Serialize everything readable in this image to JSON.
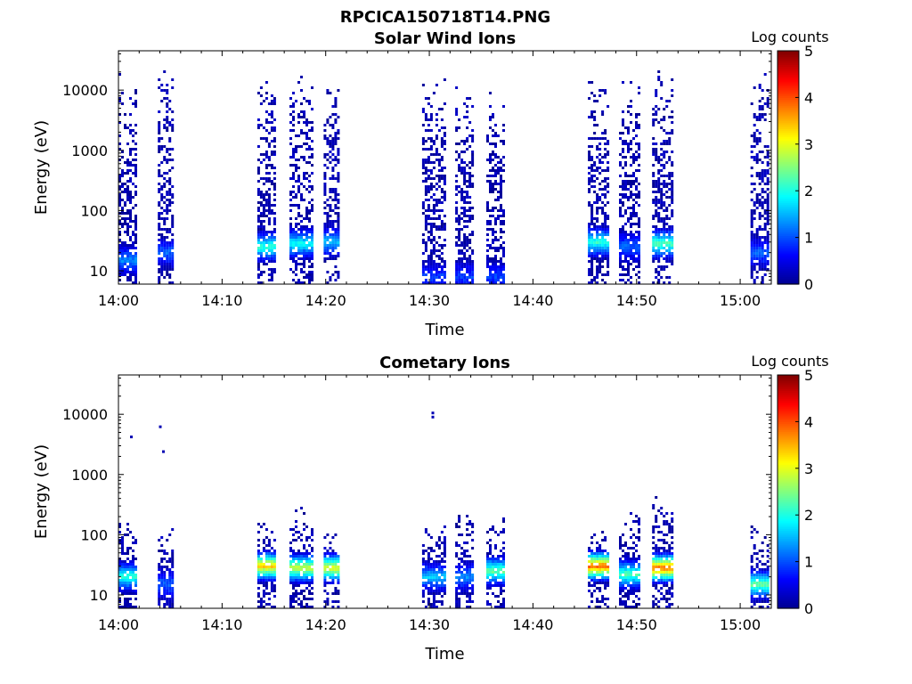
{
  "figure_title": "RPCICA150718T14.PNG",
  "colormap": [
    "#00008f",
    "#0000ff",
    "#0080ff",
    "#00ffff",
    "#80ff80",
    "#ffff00",
    "#ff8000",
    "#ff0000",
    "#800000"
  ],
  "chart_data": [
    {
      "type": "heatmap",
      "title": "Solar Wind Ions",
      "xlabel": "Time",
      "ylabel": "Energy (eV)",
      "xlim": [
        "14:00",
        "15:03"
      ],
      "x_ticks": [
        "14:00",
        "14:10",
        "14:20",
        "14:30",
        "14:40",
        "14:50",
        "15:00"
      ],
      "y_scale": "log",
      "ylim": [
        6,
        45000
      ],
      "y_ticks": [
        "10",
        "100",
        "1000",
        "10000"
      ],
      "colorbar": {
        "label": "Log counts",
        "range": [
          0,
          5
        ],
        "ticks": [
          "0",
          "1",
          "2",
          "3",
          "4",
          "5"
        ]
      },
      "bursts": [
        {
          "start": "14:00.0",
          "end": "14:01.8",
          "emin": 6,
          "emax": 22000,
          "peak_energy": 15,
          "peak_log_counts": 1.2
        },
        {
          "start": "14:03.8",
          "end": "14:05.3",
          "emin": 6,
          "emax": 25000,
          "peak_energy": 20,
          "peak_log_counts": 1.0
        },
        {
          "start": "14:13.4",
          "end": "14:15.0",
          "emin": 6,
          "emax": 20000,
          "peak_energy": 25,
          "peak_log_counts": 2.0
        },
        {
          "start": "14:16.5",
          "end": "14:18.7",
          "emin": 6,
          "emax": 18000,
          "peak_energy": 28,
          "peak_log_counts": 1.8
        },
        {
          "start": "14:19.8",
          "end": "14:21.3",
          "emin": 6,
          "emax": 15000,
          "peak_energy": 30,
          "peak_log_counts": 1.5
        },
        {
          "start": "14:29.3",
          "end": "14:31.5",
          "emin": 6,
          "emax": 18000,
          "peak_energy": 8,
          "peak_log_counts": 0.8
        },
        {
          "start": "14:32.5",
          "end": "14:34.2",
          "emin": 6,
          "emax": 15000,
          "peak_energy": 8,
          "peak_log_counts": 0.8
        },
        {
          "start": "14:35.5",
          "end": "14:37.2",
          "emin": 6,
          "emax": 10000,
          "peak_energy": 8,
          "peak_log_counts": 0.8
        },
        {
          "start": "14:45.3",
          "end": "14:47.2",
          "emin": 6,
          "emax": 18000,
          "peak_energy": 30,
          "peak_log_counts": 2.0
        },
        {
          "start": "14:48.3",
          "end": "14:50.2",
          "emin": 6,
          "emax": 20000,
          "peak_energy": 25,
          "peak_log_counts": 1.0
        },
        {
          "start": "14:51.5",
          "end": "14:53.4",
          "emin": 6,
          "emax": 25000,
          "peak_energy": 28,
          "peak_log_counts": 2.2
        },
        {
          "start": "15:01.0",
          "end": "15:02.8",
          "emin": 6,
          "emax": 22000,
          "peak_energy": 20,
          "peak_log_counts": 1.0
        }
      ]
    },
    {
      "type": "heatmap",
      "title": "Cometary Ions",
      "xlabel": "Time",
      "ylabel": "Energy (eV)",
      "xlim": [
        "14:00",
        "15:03"
      ],
      "x_ticks": [
        "14:00",
        "14:10",
        "14:20",
        "14:30",
        "14:40",
        "14:50",
        "15:00"
      ],
      "y_scale": "log",
      "ylim": [
        6,
        45000
      ],
      "y_ticks": [
        "10",
        "100",
        "1000",
        "10000"
      ],
      "colorbar": {
        "label": "Log counts",
        "range": [
          0,
          5
        ],
        "ticks": [
          "0",
          "1",
          "2",
          "3",
          "4",
          "5"
        ]
      },
      "bursts": [
        {
          "start": "14:00.0",
          "end": "14:01.8",
          "emin": 6,
          "emax": 180,
          "peak_energy": 20,
          "peak_log_counts": 2.0
        },
        {
          "start": "14:03.8",
          "end": "14:05.3",
          "emin": 6,
          "emax": 150,
          "peak_energy": 15,
          "peak_log_counts": 1.0
        },
        {
          "start": "14:13.4",
          "end": "14:15.0",
          "emin": 6,
          "emax": 180,
          "peak_energy": 30,
          "peak_log_counts": 3.3
        },
        {
          "start": "14:16.5",
          "end": "14:18.7",
          "emin": 6,
          "emax": 300,
          "peak_energy": 28,
          "peak_log_counts": 2.8
        },
        {
          "start": "14:19.8",
          "end": "14:21.3",
          "emin": 6,
          "emax": 120,
          "peak_energy": 28,
          "peak_log_counts": 3.0
        },
        {
          "start": "14:29.3",
          "end": "14:31.5",
          "emin": 6,
          "emax": 150,
          "peak_energy": 20,
          "peak_log_counts": 1.5
        },
        {
          "start": "14:32.5",
          "end": "14:34.2",
          "emin": 6,
          "emax": 350,
          "peak_energy": 20,
          "peak_log_counts": 1.2
        },
        {
          "start": "14:35.5",
          "end": "14:37.2",
          "emin": 6,
          "emax": 200,
          "peak_energy": 25,
          "peak_log_counts": 2.3
        },
        {
          "start": "14:45.3",
          "end": "14:47.2",
          "emin": 6,
          "emax": 150,
          "peak_energy": 30,
          "peak_log_counts": 3.8
        },
        {
          "start": "14:48.3",
          "end": "14:50.2",
          "emin": 6,
          "emax": 250,
          "peak_energy": 22,
          "peak_log_counts": 2.2
        },
        {
          "start": "14:51.5",
          "end": "14:53.4",
          "emin": 6,
          "emax": 450,
          "peak_energy": 28,
          "peak_log_counts": 3.8
        },
        {
          "start": "15:01.0",
          "end": "15:02.8",
          "emin": 6,
          "emax": 160,
          "peak_energy": 15,
          "peak_log_counts": 2.3
        }
      ],
      "isolated_points": [
        {
          "time": "14:01.2",
          "energy": 4200,
          "log_counts": 0.2
        },
        {
          "time": "14:04.0",
          "energy": 6200,
          "log_counts": 0.2
        },
        {
          "time": "14:04.3",
          "energy": 2400,
          "log_counts": 0.2
        },
        {
          "time": "14:30.3",
          "energy": 10500,
          "log_counts": 0.2
        },
        {
          "time": "14:30.3",
          "energy": 9000,
          "log_counts": 0.2
        }
      ]
    }
  ]
}
